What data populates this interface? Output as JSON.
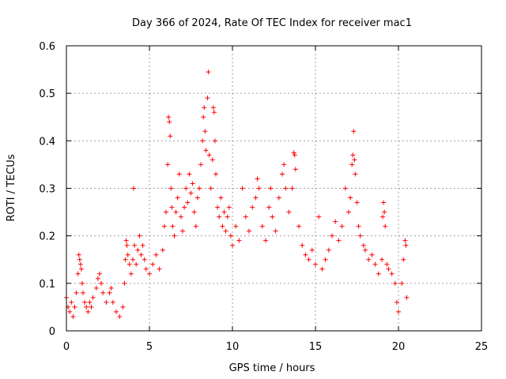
{
  "chart_data": {
    "type": "scatter",
    "title": "Day 366 of 2024, Rate Of TEC Index for receiver mac1",
    "xlabel": "GPS time / hours",
    "ylabel": "ROTI / TECUs",
    "xlim": [
      0,
      25
    ],
    "ylim": [
      0,
      0.6
    ],
    "xticks": [
      0,
      5,
      10,
      15,
      20,
      25
    ],
    "yticks": [
      0,
      0.1,
      0.2,
      0.3,
      0.4,
      0.5,
      0.6
    ],
    "xtick_labels": [
      "0",
      "5",
      "10",
      "15",
      "20",
      "25"
    ],
    "ytick_labels": [
      "0",
      "0.1",
      "0.2",
      "0.3",
      "0.4",
      "0.5",
      "0.6"
    ],
    "grid": true,
    "marker": "plus",
    "marker_color": "#ff0000",
    "series": [
      {
        "values": [
          [
            0.0,
            0.07
          ],
          [
            0.1,
            0.05
          ],
          [
            0.2,
            0.04
          ],
          [
            0.3,
            0.06
          ],
          [
            0.4,
            0.03
          ],
          [
            0.5,
            0.05
          ],
          [
            0.6,
            0.08
          ],
          [
            0.7,
            0.12
          ],
          [
            0.75,
            0.16
          ],
          [
            0.8,
            0.15
          ],
          [
            0.85,
            0.14
          ],
          [
            0.9,
            0.13
          ],
          [
            0.95,
            0.1
          ],
          [
            1.0,
            0.08
          ],
          [
            1.1,
            0.06
          ],
          [
            1.2,
            0.05
          ],
          [
            1.3,
            0.04
          ],
          [
            1.4,
            0.06
          ],
          [
            1.5,
            0.05
          ],
          [
            1.6,
            0.07
          ],
          [
            1.8,
            0.09
          ],
          [
            1.9,
            0.11
          ],
          [
            2.0,
            0.12
          ],
          [
            2.1,
            0.1
          ],
          [
            2.2,
            0.08
          ],
          [
            2.4,
            0.06
          ],
          [
            2.6,
            0.08
          ],
          [
            2.7,
            0.09
          ],
          [
            2.8,
            0.06
          ],
          [
            3.0,
            0.04
          ],
          [
            3.2,
            0.03
          ],
          [
            3.4,
            0.05
          ],
          [
            3.5,
            0.1
          ],
          [
            3.55,
            0.15
          ],
          [
            3.6,
            0.19
          ],
          [
            3.65,
            0.18
          ],
          [
            3.7,
            0.16
          ],
          [
            3.8,
            0.14
          ],
          [
            3.9,
            0.12
          ],
          [
            4.0,
            0.15
          ],
          [
            4.05,
            0.3
          ],
          [
            4.1,
            0.18
          ],
          [
            4.2,
            0.14
          ],
          [
            4.3,
            0.17
          ],
          [
            4.4,
            0.2
          ],
          [
            4.5,
            0.16
          ],
          [
            4.6,
            0.18
          ],
          [
            4.7,
            0.15
          ],
          [
            4.8,
            0.13
          ],
          [
            5.0,
            0.12
          ],
          [
            5.2,
            0.14
          ],
          [
            5.4,
            0.16
          ],
          [
            5.6,
            0.13
          ],
          [
            5.8,
            0.17
          ],
          [
            5.9,
            0.22
          ],
          [
            6.0,
            0.25
          ],
          [
            6.1,
            0.35
          ],
          [
            6.15,
            0.45
          ],
          [
            6.2,
            0.44
          ],
          [
            6.25,
            0.41
          ],
          [
            6.3,
            0.3
          ],
          [
            6.35,
            0.26
          ],
          [
            6.4,
            0.22
          ],
          [
            6.5,
            0.2
          ],
          [
            6.6,
            0.25
          ],
          [
            6.7,
            0.28
          ],
          [
            6.8,
            0.33
          ],
          [
            6.9,
            0.24
          ],
          [
            7.0,
            0.21
          ],
          [
            7.1,
            0.26
          ],
          [
            7.2,
            0.3
          ],
          [
            7.3,
            0.27
          ],
          [
            7.4,
            0.33
          ],
          [
            7.5,
            0.29
          ],
          [
            7.6,
            0.31
          ],
          [
            7.7,
            0.25
          ],
          [
            7.8,
            0.22
          ],
          [
            7.9,
            0.28
          ],
          [
            8.0,
            0.3
          ],
          [
            8.1,
            0.35
          ],
          [
            8.2,
            0.4
          ],
          [
            8.25,
            0.45
          ],
          [
            8.3,
            0.47
          ],
          [
            8.35,
            0.42
          ],
          [
            8.4,
            0.38
          ],
          [
            8.5,
            0.49
          ],
          [
            8.55,
            0.545
          ],
          [
            8.6,
            0.37
          ],
          [
            8.7,
            0.3
          ],
          [
            8.8,
            0.36
          ],
          [
            8.85,
            0.47
          ],
          [
            8.9,
            0.46
          ],
          [
            8.95,
            0.4
          ],
          [
            9.0,
            0.33
          ],
          [
            9.1,
            0.26
          ],
          [
            9.2,
            0.24
          ],
          [
            9.3,
            0.28
          ],
          [
            9.4,
            0.22
          ],
          [
            9.5,
            0.25
          ],
          [
            9.6,
            0.21
          ],
          [
            9.7,
            0.24
          ],
          [
            9.8,
            0.26
          ],
          [
            9.9,
            0.2
          ],
          [
            10.0,
            0.18
          ],
          [
            10.2,
            0.22
          ],
          [
            10.4,
            0.19
          ],
          [
            10.6,
            0.3
          ],
          [
            10.8,
            0.24
          ],
          [
            11.0,
            0.21
          ],
          [
            11.2,
            0.26
          ],
          [
            11.4,
            0.28
          ],
          [
            11.5,
            0.32
          ],
          [
            11.6,
            0.3
          ],
          [
            11.8,
            0.22
          ],
          [
            12.0,
            0.19
          ],
          [
            12.2,
            0.26
          ],
          [
            12.3,
            0.3
          ],
          [
            12.4,
            0.24
          ],
          [
            12.6,
            0.21
          ],
          [
            12.8,
            0.28
          ],
          [
            13.0,
            0.33
          ],
          [
            13.1,
            0.35
          ],
          [
            13.2,
            0.3
          ],
          [
            13.4,
            0.25
          ],
          [
            13.6,
            0.3
          ],
          [
            13.7,
            0.375
          ],
          [
            13.75,
            0.37
          ],
          [
            13.8,
            0.34
          ],
          [
            14.0,
            0.22
          ],
          [
            14.2,
            0.18
          ],
          [
            14.4,
            0.16
          ],
          [
            14.6,
            0.15
          ],
          [
            14.8,
            0.17
          ],
          [
            15.0,
            0.14
          ],
          [
            15.2,
            0.24
          ],
          [
            15.4,
            0.13
          ],
          [
            15.6,
            0.15
          ],
          [
            15.8,
            0.17
          ],
          [
            16.0,
            0.2
          ],
          [
            16.2,
            0.23
          ],
          [
            16.4,
            0.19
          ],
          [
            16.6,
            0.22
          ],
          [
            16.8,
            0.3
          ],
          [
            17.0,
            0.25
          ],
          [
            17.1,
            0.28
          ],
          [
            17.2,
            0.35
          ],
          [
            17.25,
            0.37
          ],
          [
            17.3,
            0.42
          ],
          [
            17.35,
            0.36
          ],
          [
            17.4,
            0.33
          ],
          [
            17.5,
            0.27
          ],
          [
            17.6,
            0.22
          ],
          [
            17.7,
            0.2
          ],
          [
            17.9,
            0.18
          ],
          [
            18.0,
            0.17
          ],
          [
            18.2,
            0.15
          ],
          [
            18.4,
            0.16
          ],
          [
            18.6,
            0.14
          ],
          [
            18.8,
            0.12
          ],
          [
            19.0,
            0.15
          ],
          [
            19.05,
            0.24
          ],
          [
            19.1,
            0.27
          ],
          [
            19.15,
            0.25
          ],
          [
            19.2,
            0.22
          ],
          [
            19.3,
            0.14
          ],
          [
            19.4,
            0.13
          ],
          [
            19.6,
            0.12
          ],
          [
            19.8,
            0.1
          ],
          [
            19.9,
            0.06
          ],
          [
            20.0,
            0.04
          ],
          [
            20.2,
            0.1
          ],
          [
            20.3,
            0.15
          ],
          [
            20.4,
            0.19
          ],
          [
            20.45,
            0.18
          ],
          [
            20.5,
            0.07
          ]
        ]
      }
    ]
  }
}
